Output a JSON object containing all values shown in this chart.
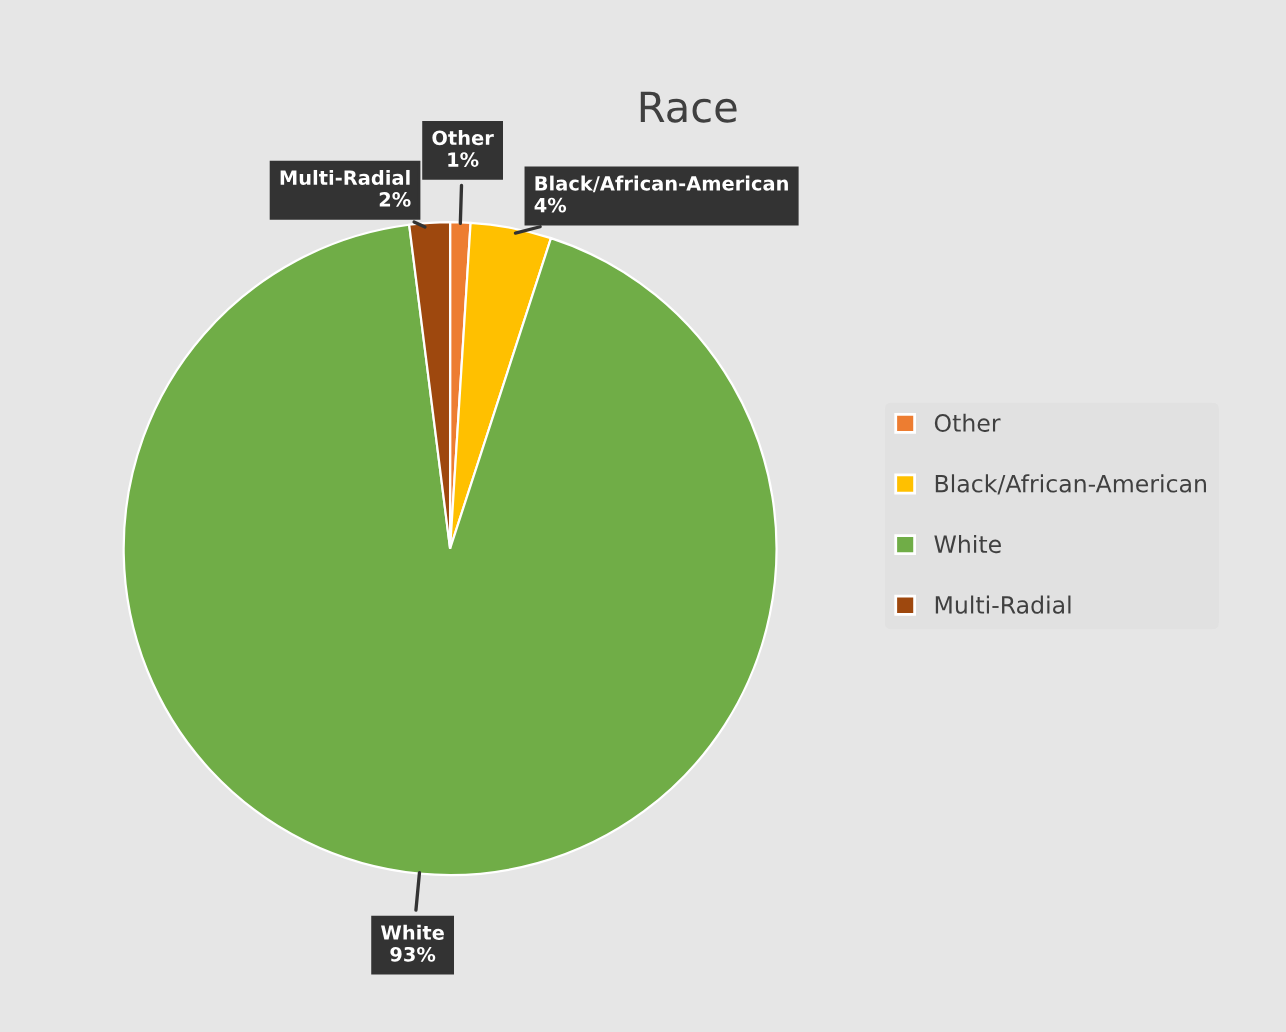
{
  "chart_data": {
    "type": "pie",
    "title": "Race",
    "categories": [
      "Other",
      "Black/African-American",
      "White",
      "Multi-Radial"
    ],
    "values": [
      1,
      4,
      93,
      2
    ],
    "colors": [
      "#ed7d31",
      "#ffc000",
      "#70ad47",
      "#9e480e"
    ],
    "value_labels": [
      "1%",
      "4%",
      "93%",
      "2%"
    ],
    "legend": "right"
  }
}
